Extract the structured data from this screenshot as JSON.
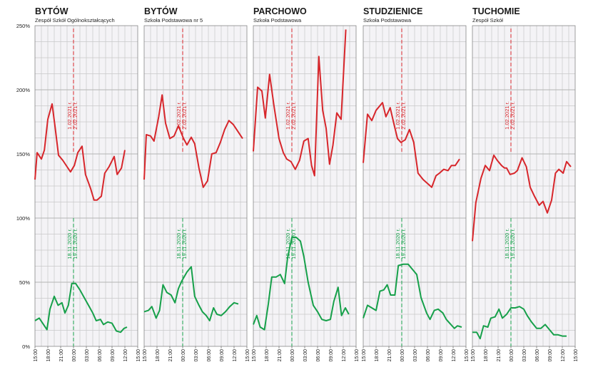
{
  "chart_data": {
    "type": "line",
    "y_ticks": [
      "0%",
      "50%",
      "100%",
      "150%",
      "200%",
      "250%"
    ],
    "ylim": [
      0,
      250
    ],
    "x_tick_labels": [
      "15:00",
      "18:00",
      "21:00",
      "00:00",
      "03:00",
      "06:00",
      "09:00",
      "12:00",
      "15:00"
    ],
    "x_range_hours": [
      0,
      24
    ],
    "grid": true,
    "colors": {
      "red": "#d7262b",
      "green": "#16a04a",
      "panel_bg": "#f4f3f6",
      "grid": "#c8c8c8"
    },
    "panels": [
      {
        "title": "BYTÓW",
        "subtitle": "Zespół Szkół Ogólnokształcących",
        "red_label": [
          "1.02.2021 r.",
          "2.02.2021 r."
        ],
        "green_label": [
          "18.11.2020 r.",
          "19.11.2020 r."
        ],
        "red": [
          [
            0,
            130
          ],
          [
            0.5,
            151
          ],
          [
            1.5,
            146
          ],
          [
            2.2,
            153
          ],
          [
            3,
            177
          ],
          [
            4,
            189
          ],
          [
            4.7,
            171
          ],
          [
            5.5,
            149
          ],
          [
            6.5,
            145
          ],
          [
            7.5,
            140
          ],
          [
            8.3,
            136
          ],
          [
            9.2,
            141
          ],
          [
            10,
            151
          ],
          [
            11,
            156
          ],
          [
            11.8,
            134
          ],
          [
            13,
            123
          ],
          [
            13.8,
            114
          ],
          [
            14.5,
            114
          ],
          [
            15.5,
            117
          ],
          [
            16.3,
            135
          ],
          [
            17.3,
            140
          ],
          [
            18.5,
            148
          ],
          [
            19.2,
            134
          ],
          [
            20.2,
            139
          ],
          [
            21,
            153
          ]
        ],
        "green": [
          [
            0,
            20
          ],
          [
            1,
            22
          ],
          [
            2.8,
            13
          ],
          [
            3.5,
            29
          ],
          [
            4.5,
            39
          ],
          [
            5.4,
            32
          ],
          [
            6.3,
            34
          ],
          [
            7,
            26
          ],
          [
            7.8,
            32
          ],
          [
            8.6,
            49
          ],
          [
            9.5,
            49
          ],
          [
            10.5,
            44
          ],
          [
            11.5,
            38
          ],
          [
            12.5,
            32
          ],
          [
            13.5,
            26
          ],
          [
            14.3,
            20
          ],
          [
            15.3,
            21
          ],
          [
            16,
            17
          ],
          [
            17,
            19
          ],
          [
            18,
            18
          ],
          [
            19,
            12
          ],
          [
            20,
            11
          ],
          [
            20.8,
            14
          ],
          [
            21.5,
            15
          ]
        ]
      },
      {
        "title": "BYTÓW",
        "subtitle": "Szkoła Podstawowa nr 5",
        "red_label": [
          "1.02.2021 r.",
          "2.02.2021 r."
        ],
        "green_label": [
          "18.11.2020 r.",
          "19.11.2020 r."
        ],
        "red": [
          [
            0,
            130
          ],
          [
            0.5,
            165
          ],
          [
            1.5,
            164
          ],
          [
            2.3,
            160
          ],
          [
            3.4,
            179
          ],
          [
            4.2,
            196
          ],
          [
            5,
            174
          ],
          [
            6,
            162
          ],
          [
            7,
            164
          ],
          [
            8,
            172
          ],
          [
            9.2,
            162
          ],
          [
            10,
            157
          ],
          [
            11,
            163
          ],
          [
            11.8,
            158
          ],
          [
            12.8,
            139
          ],
          [
            13.8,
            124
          ],
          [
            14.8,
            129
          ],
          [
            15.8,
            150
          ],
          [
            16.8,
            151
          ],
          [
            17.8,
            159
          ],
          [
            18.8,
            169
          ],
          [
            19.8,
            176
          ],
          [
            20.8,
            173
          ],
          [
            21.8,
            168
          ],
          [
            23,
            162
          ]
        ],
        "green": [
          [
            0,
            27
          ],
          [
            1,
            28
          ],
          [
            1.8,
            31
          ],
          [
            2.8,
            22
          ],
          [
            3.6,
            28
          ],
          [
            4.4,
            48
          ],
          [
            5.3,
            42
          ],
          [
            6.3,
            40
          ],
          [
            7.2,
            34
          ],
          [
            8,
            45
          ],
          [
            8.8,
            51
          ],
          [
            10,
            58
          ],
          [
            11,
            62
          ],
          [
            11.8,
            39
          ],
          [
            12.8,
            32
          ],
          [
            13.6,
            27
          ],
          [
            14.5,
            24
          ],
          [
            15.3,
            20
          ],
          [
            16.2,
            30
          ],
          [
            17,
            25
          ],
          [
            18,
            24
          ],
          [
            19,
            27
          ],
          [
            20,
            31
          ],
          [
            21,
            34
          ],
          [
            22,
            33
          ]
        ]
      },
      {
        "title": "PARCHOWO",
        "subtitle": "Szkoła Podstawowa",
        "red_label": [
          "1.02.2021 r.",
          "2.02.2021 r."
        ],
        "green_label": [
          "18.11.2020 r.",
          "19.11.2020 r."
        ],
        "red": [
          [
            0,
            152
          ],
          [
            1,
            202
          ],
          [
            2,
            199
          ],
          [
            2.8,
            178
          ],
          [
            3.8,
            212
          ],
          [
            4.8,
            188
          ],
          [
            6,
            162
          ],
          [
            7,
            151
          ],
          [
            7.8,
            146
          ],
          [
            8.8,
            144
          ],
          [
            9.8,
            138
          ],
          [
            10.8,
            145
          ],
          [
            11.8,
            160
          ],
          [
            12.8,
            162
          ],
          [
            13.6,
            141
          ],
          [
            14.3,
            133
          ],
          [
            15.3,
            226
          ],
          [
            16.2,
            184
          ],
          [
            17,
            170
          ],
          [
            17.8,
            142
          ],
          [
            18.6,
            157
          ],
          [
            19.5,
            182
          ],
          [
            20.5,
            177
          ],
          [
            21.6,
            247
          ]
        ],
        "green": [
          [
            0,
            17
          ],
          [
            0.8,
            24
          ],
          [
            1.6,
            15
          ],
          [
            2.6,
            13
          ],
          [
            3.5,
            33
          ],
          [
            4.3,
            54
          ],
          [
            5.3,
            54
          ],
          [
            6.3,
            56
          ],
          [
            7.3,
            49
          ],
          [
            8,
            69
          ],
          [
            9,
            85
          ],
          [
            10,
            85
          ],
          [
            11,
            82
          ],
          [
            11.8,
            70
          ],
          [
            12.8,
            50
          ],
          [
            14,
            32
          ],
          [
            15,
            27
          ],
          [
            16,
            21
          ],
          [
            17,
            20
          ],
          [
            18,
            21
          ],
          [
            18.8,
            35
          ],
          [
            19.8,
            46
          ],
          [
            20.6,
            24
          ],
          [
            21.5,
            30
          ],
          [
            22.3,
            25
          ]
        ]
      },
      {
        "title": "STUDZIENICE",
        "subtitle": "Szkoła Podstawowa",
        "red_label": [
          "1.02.2021 r.",
          "2.02.2021 r."
        ],
        "green_label": [
          "18.11.2020 r.",
          "19.11.2020 r."
        ],
        "red": [
          [
            0,
            143
          ],
          [
            1,
            181
          ],
          [
            2,
            176
          ],
          [
            3,
            184
          ],
          [
            4.5,
            190
          ],
          [
            5.3,
            179
          ],
          [
            6.3,
            186
          ],
          [
            7.2,
            173
          ],
          [
            8,
            162
          ],
          [
            8.8,
            159
          ],
          [
            9.8,
            161
          ],
          [
            10.8,
            169
          ],
          [
            11.8,
            159
          ],
          [
            12.8,
            135
          ],
          [
            14,
            130
          ],
          [
            15,
            127
          ],
          [
            16,
            124
          ],
          [
            17,
            133
          ],
          [
            17.8,
            135
          ],
          [
            18.8,
            138
          ],
          [
            19.8,
            137
          ],
          [
            20.6,
            141
          ],
          [
            21.5,
            141
          ],
          [
            22.5,
            146
          ]
        ],
        "green": [
          [
            0,
            22
          ],
          [
            1,
            32
          ],
          [
            2,
            30
          ],
          [
            3,
            28
          ],
          [
            3.9,
            43
          ],
          [
            4.8,
            44
          ],
          [
            5.6,
            48
          ],
          [
            6.4,
            40
          ],
          [
            7.4,
            40
          ],
          [
            8.2,
            63
          ],
          [
            9.3,
            64
          ],
          [
            10.5,
            64
          ],
          [
            11.5,
            60
          ],
          [
            12.5,
            56
          ],
          [
            13.5,
            38
          ],
          [
            14.8,
            26
          ],
          [
            15.6,
            21
          ],
          [
            16.6,
            28
          ],
          [
            17.5,
            29
          ],
          [
            18.6,
            26
          ],
          [
            19.4,
            21
          ],
          [
            20.2,
            18
          ],
          [
            21.3,
            14
          ],
          [
            22,
            16
          ],
          [
            23,
            15
          ]
        ]
      },
      {
        "title": "TUCHOMIE",
        "subtitle": "Zespół Szkół",
        "red_label": [
          "1.02.2021 r.",
          "2.02.2021 r."
        ],
        "green_label": [
          "18.11.2020 r.",
          "19.11.2020 r."
        ],
        "red": [
          [
            0,
            82
          ],
          [
            0.8,
            112
          ],
          [
            2,
            131
          ],
          [
            3,
            141
          ],
          [
            4,
            137
          ],
          [
            5,
            149
          ],
          [
            5.8,
            145
          ],
          [
            6.8,
            141
          ],
          [
            7.5,
            139
          ],
          [
            8,
            139
          ],
          [
            8.8,
            134
          ],
          [
            9.8,
            135
          ],
          [
            10.5,
            137
          ],
          [
            11.6,
            147
          ],
          [
            12.6,
            140
          ],
          [
            13.5,
            124
          ],
          [
            14.5,
            117
          ],
          [
            15.6,
            110
          ],
          [
            16.5,
            113
          ],
          [
            17.5,
            104
          ],
          [
            18.5,
            114
          ],
          [
            19.4,
            135
          ],
          [
            20.2,
            138
          ],
          [
            21.2,
            135
          ],
          [
            22,
            144
          ],
          [
            23,
            140
          ]
        ],
        "green": [
          [
            0,
            11
          ],
          [
            1,
            11
          ],
          [
            1.8,
            6
          ],
          [
            2.6,
            16
          ],
          [
            3.6,
            15
          ],
          [
            4.3,
            22
          ],
          [
            5.3,
            23
          ],
          [
            6.2,
            29
          ],
          [
            7,
            22
          ],
          [
            8,
            25
          ],
          [
            9,
            30
          ],
          [
            10,
            30
          ],
          [
            11,
            31
          ],
          [
            12,
            29
          ],
          [
            12.8,
            24
          ],
          [
            13.8,
            19
          ],
          [
            15,
            14
          ],
          [
            16,
            14
          ],
          [
            17,
            17
          ],
          [
            18,
            13
          ],
          [
            19,
            9
          ],
          [
            20,
            9
          ],
          [
            21,
            8
          ],
          [
            22,
            8
          ]
        ]
      }
    ]
  }
}
